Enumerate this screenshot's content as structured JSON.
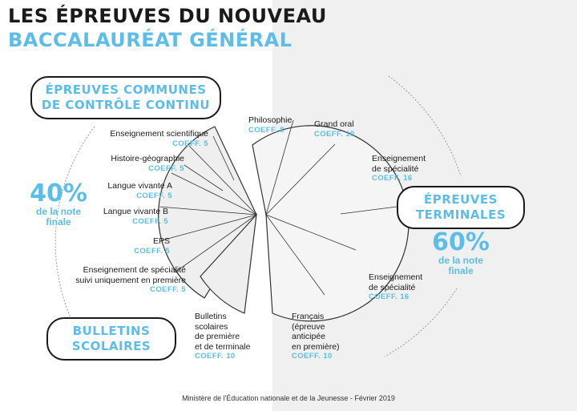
{
  "title": {
    "line1": "LES ÉPREUVES DU NOUVEAU",
    "line2": "BACCALAURÉAT GÉNÉRAL"
  },
  "groups": {
    "controle": {
      "line1": "ÉPREUVES COMMUNES",
      "line2": "DE CONTRÔLE CONTINU"
    },
    "bulletins": {
      "line1": "BULLETINS",
      "line2": "SCOLAIRES"
    },
    "terminales": {
      "line1": "ÉPREUVES",
      "line2": "TERMINALES"
    }
  },
  "percentages": {
    "left": {
      "value": "40%",
      "line1": "de la note",
      "line2": "finale"
    },
    "right": {
      "value": "60%",
      "line1": "de la note",
      "line2": "finale"
    }
  },
  "left_items": [
    {
      "label": "Enseignement scientifique",
      "coeff": "COEFF. 5"
    },
    {
      "label": "Histoire-géographie",
      "coeff": "COEFF. 5"
    },
    {
      "label": "Langue vivante A",
      "coeff": "COEFF. 5"
    },
    {
      "label": "Langue vivante B",
      "coeff": "COEFF. 5"
    },
    {
      "label": "EPS",
      "coeff": "COEFF. 5"
    },
    {
      "label1": "Enseignement de spécialité",
      "label2": "suivi uniquement en première",
      "coeff": "COEFF. 5"
    }
  ],
  "bulletins_item": {
    "line1": "Bulletins",
    "line2": "scolaires",
    "line3": "de première",
    "line4": "et de terminale",
    "coeff": "COEFF. 10"
  },
  "right_items": {
    "philosophie": {
      "label": "Philosophie",
      "coeff": "COEFF. 8"
    },
    "grand_oral": {
      "label": "Grand oral",
      "coeff": "COEFF. 10"
    },
    "specialite1": {
      "line1": "Enseignement",
      "line2": "de spécialité",
      "coeff": "COEFF. 16"
    },
    "specialite2": {
      "line1": "Enseignement",
      "line2": "de spécialité",
      "coeff": "COEFF. 16"
    },
    "francais": {
      "line1": "Français",
      "line2": "(épreuve",
      "line3": "anticipée",
      "line4": "en première)",
      "coeff": "COEFF. 10"
    }
  },
  "footer": "Ministère de l'Éducation nationale et de la Jeunesse - Février 2019",
  "colors": {
    "accent": "#5bbde8",
    "ink": "#1a1a1a",
    "panel": "#f0f0f0"
  }
}
